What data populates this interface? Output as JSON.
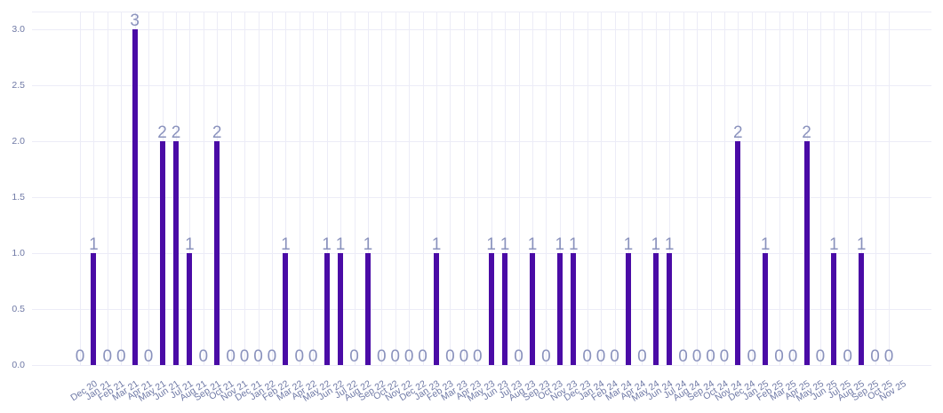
{
  "chart_data": {
    "type": "bar",
    "title": "",
    "xlabel": "",
    "ylabel": "",
    "categories": [
      "Dec 20",
      "Jan 21",
      "Feb 21",
      "Mar 21",
      "Apr 21",
      "May 21",
      "Jun 21",
      "Jul 21",
      "Aug 21",
      "Sep 21",
      "Oct 21",
      "Nov 21",
      "Dec 21",
      "Jan 22",
      "Feb 22",
      "Mar 22",
      "Apr 22",
      "May 22",
      "Jun 22",
      "Jul 22",
      "Aug 22",
      "Sep 22",
      "Oct 22",
      "Nov 22",
      "Dec 22",
      "Jan 23",
      "Feb 23",
      "Mar 23",
      "Apr 23",
      "May 23",
      "Jun 23",
      "Jul 23",
      "Aug 23",
      "Sep 23",
      "Oct 23",
      "Nov 23",
      "Dec 23",
      "Jan 24",
      "Feb 24",
      "Mar 24",
      "Apr 24",
      "May 24",
      "Jun 24",
      "Jul 24",
      "Aug 24",
      "Sep 24",
      "Oct 24",
      "Nov 24",
      "Dec 24",
      "Jan 25",
      "Feb 25",
      "Mar 25",
      "Apr 25",
      "May 25",
      "Jun 25",
      "Jul 25",
      "Aug 25",
      "Sep 25",
      "Oct 25",
      "Nov 25"
    ],
    "values": [
      0,
      1,
      0,
      0,
      3,
      0,
      2,
      2,
      1,
      0,
      2,
      0,
      0,
      0,
      0,
      1,
      0,
      0,
      1,
      1,
      0,
      1,
      0,
      0,
      0,
      0,
      1,
      0,
      0,
      0,
      1,
      1,
      0,
      1,
      0,
      1,
      1,
      0,
      0,
      0,
      1,
      0,
      1,
      1,
      0,
      0,
      0,
      0,
      2,
      0,
      1,
      0,
      0,
      2,
      0,
      1,
      0,
      1,
      0,
      0
    ],
    "data_labels_shown": true,
    "ylim": [
      0,
      3
    ],
    "ytick_labels": [
      "0.0",
      "0.5",
      "1.0",
      "1.5",
      "2.0",
      "2.5",
      "3.0"
    ],
    "ytick_values": [
      0,
      0.5,
      1,
      1.5,
      2,
      2.5,
      3
    ],
    "grid": true,
    "legend": false,
    "colors": {
      "bar": "#4A0BA6",
      "value_label": "#8A92BD",
      "axis_label": "#6E78A5",
      "grid_line": "#ECECF7"
    }
  }
}
